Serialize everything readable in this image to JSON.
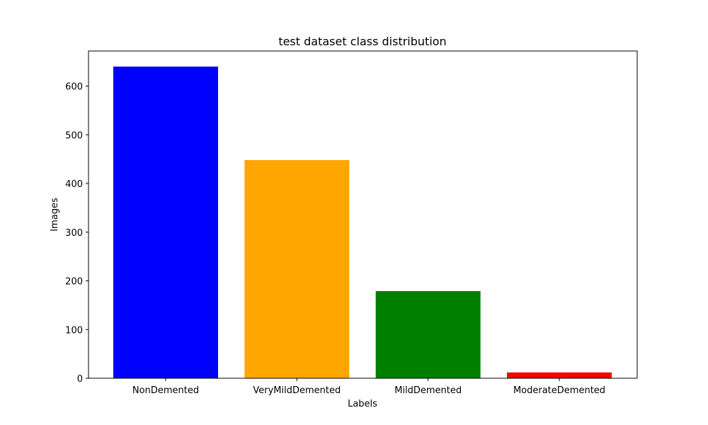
{
  "chart_data": {
    "type": "bar",
    "title": "test dataset class distribution",
    "xlabel": "Labels",
    "ylabel": "Images",
    "categories": [
      "NonDemented",
      "VeryMildDemented",
      "MildDemented",
      "ModerateDemented"
    ],
    "values": [
      640,
      448,
      179,
      12
    ],
    "colors": [
      "#0000ff",
      "#ffa500",
      "#008000",
      "#ff0000"
    ],
    "ylim": [
      0,
      672
    ],
    "yticks": [
      0,
      100,
      200,
      300,
      400,
      500,
      600
    ],
    "grid": false,
    "legend": "none"
  }
}
